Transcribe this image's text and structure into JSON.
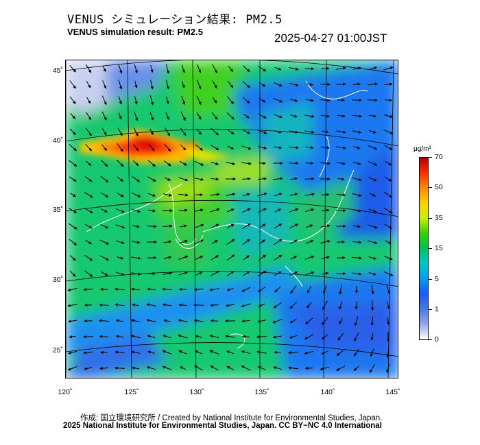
{
  "header": {
    "title_jp": "VENUS シミュレーション結果: PM2.5",
    "title_en": "VENUS simulation result: PM2.5",
    "timestamp": "2025-04-27 01:00JST"
  },
  "map": {
    "region": "East Asia / Japan",
    "variable": "PM2.5",
    "colors": {
      "background_low": "#00c870",
      "ocean_mid": "#1e6ef0",
      "plume_high": "#ff3000",
      "coastline": "#ffffff",
      "wind_arrow": "#000000",
      "graticule": "#000000"
    },
    "lat_labels": [
      "45˚",
      "40˚",
      "35˚",
      "30˚",
      "25˚"
    ],
    "lon_labels": [
      "120˚",
      "125˚",
      "130˚",
      "135˚",
      "140˚",
      "145˚"
    ]
  },
  "colorbar": {
    "unit": "μg/m³",
    "ticks": [
      "70",
      "50",
      "35",
      "15",
      "5",
      "1",
      "0"
    ]
  },
  "footer": {
    "credit_line": "作成: 国立環境研究所 / Created by National Institute for Environmental Studies, Japan.",
    "license_line": "2025 National Institute for Environmental Studies, Japan. CC BY−NC 4.0 International"
  }
}
